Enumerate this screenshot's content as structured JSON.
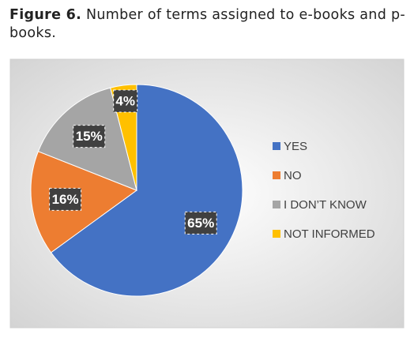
{
  "chart_data": {
    "type": "pie",
    "figure_label": "Figure 6.",
    "title": "Number of terms assigned to e-books and p-books.",
    "categories": [
      "YES",
      "NO",
      "I DON’T KNOW",
      "NOT INFORMED"
    ],
    "values": [
      65,
      16,
      15,
      4
    ],
    "value_labels": [
      "65%",
      "16%",
      "15%",
      "4%"
    ],
    "colors": [
      "#4472c4",
      "#ed7d31",
      "#a5a5a5",
      "#ffc000"
    ],
    "legend": "right"
  }
}
